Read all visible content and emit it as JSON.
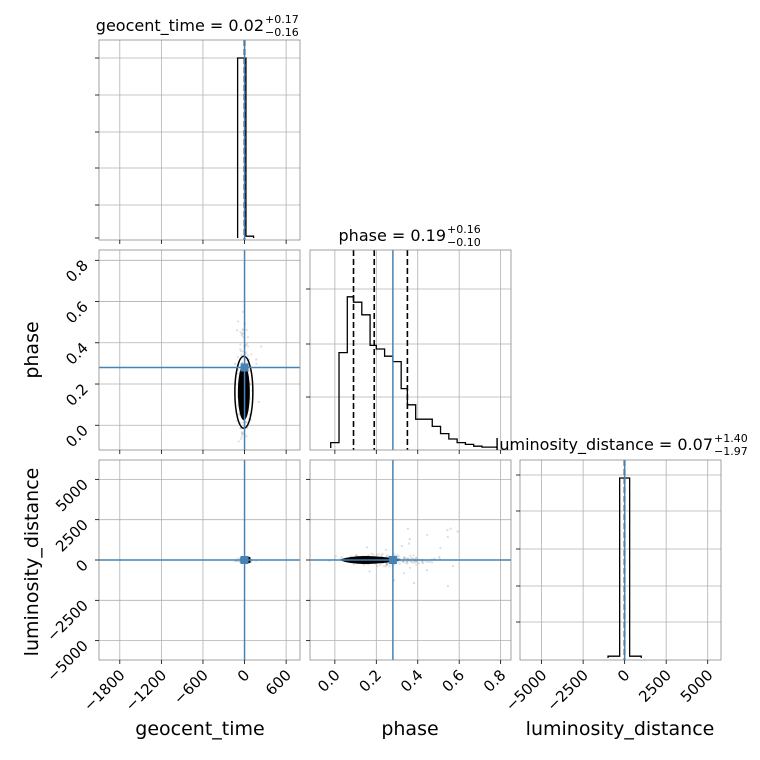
{
  "chart_data": [
    {
      "type": "histogram",
      "panel": "geocent_time",
      "title": {
        "base": "geocent_time = 0.02",
        "sup": "+0.17",
        "sub": "−0.16"
      },
      "xlim": [
        -2100,
        800
      ],
      "x_ticks": [
        -1800,
        -1200,
        -600,
        0,
        600
      ],
      "x_tick_labels": [],
      "bins": [
        {
          "x0": -100,
          "x1": 20,
          "height": 1.0
        },
        {
          "x0": 20,
          "x1": 130,
          "height": 0.01
        }
      ],
      "quantile_lines": [
        -0.14,
        0.02,
        0.19
      ],
      "truth": 0
    },
    {
      "type": "scatter",
      "panel": "phase vs geocent_time",
      "xlim": [
        -2100,
        800
      ],
      "ylim": [
        -0.12,
        0.85
      ],
      "x_ticks": [
        -1800,
        -1200,
        -600,
        0,
        600
      ],
      "y_ticks": [
        0.0,
        0.2,
        0.4,
        0.6,
        0.8
      ],
      "y_tick_labels": [
        "0.0",
        "0.2",
        "0.4",
        "0.6",
        "0.8"
      ],
      "ylabel": "phase",
      "truth": {
        "x": 0,
        "y": 0.28
      },
      "core_contour": {
        "x_center": -10,
        "y_range": [
          0.06,
          0.32
        ]
      }
    },
    {
      "type": "histogram",
      "panel": "phase",
      "title": {
        "base": "phase = 0.19",
        "sup": "+0.16",
        "sub": "−0.10"
      },
      "xlim": [
        -0.12,
        0.85
      ],
      "x_ticks": [
        0.0,
        0.2,
        0.4,
        0.6,
        0.8
      ],
      "x_tick_labels": [],
      "bin_edges": [
        -0.02,
        0.02,
        0.06,
        0.09,
        0.13,
        0.17,
        0.2,
        0.24,
        0.28,
        0.32,
        0.35,
        0.39,
        0.43,
        0.47,
        0.51,
        0.55,
        0.59,
        0.63,
        0.67,
        0.71,
        0.78
      ],
      "counts": [
        0.03,
        0.53,
        0.84,
        0.81,
        0.74,
        0.57,
        0.55,
        0.51,
        0.48,
        0.33,
        0.24,
        0.16,
        0.16,
        0.12,
        0.08,
        0.05,
        0.03,
        0.02,
        0.01,
        0.005
      ],
      "quantile_lines": [
        0.09,
        0.19,
        0.35
      ],
      "truth": 0.28
    },
    {
      "type": "scatter",
      "panel": "luminosity_distance vs geocent_time",
      "xlim": [
        -2100,
        800
      ],
      "ylim": [
        -6200,
        6200
      ],
      "x_ticks": [
        -1800,
        -1200,
        -600,
        0,
        600
      ],
      "x_tick_labels": [
        "−1800",
        "−1200",
        "−600",
        "0",
        "600"
      ],
      "y_ticks": [
        -5000,
        -2500,
        0,
        2500,
        5000
      ],
      "y_tick_labels": [
        "−5000",
        "−2500",
        "0",
        "2500",
        "5000"
      ],
      "xlabel": "geocent_time",
      "ylabel": "luminosity_distance",
      "truth": {
        "x": 0,
        "y": 0
      }
    },
    {
      "type": "scatter",
      "panel": "luminosity_distance vs phase",
      "xlim": [
        -0.12,
        0.85
      ],
      "ylim": [
        -6200,
        6200
      ],
      "x_ticks": [
        0.0,
        0.2,
        0.4,
        0.6,
        0.8
      ],
      "x_tick_labels": [
        "0.0",
        "0.2",
        "0.4",
        "0.6",
        "0.8"
      ],
      "y_ticks": [
        -5000,
        -2500,
        0,
        2500,
        5000
      ],
      "xlabel": "phase",
      "truth": {
        "x": 0.28,
        "y": 0
      }
    },
    {
      "type": "histogram",
      "panel": "luminosity_distance",
      "title": {
        "base": "luminosity_distance = 0.07",
        "sup": "+1.40",
        "sub": "−1.97"
      },
      "xlim": [
        -6300,
        5800
      ],
      "x_ticks": [
        -5000,
        -2500,
        0,
        2500,
        5000
      ],
      "x_tick_labels": [
        "−5000",
        "−2500",
        "0",
        "2500",
        "5000"
      ],
      "xlabel": "luminosity_distance",
      "bins": [
        {
          "x0": -1000,
          "x1": -300,
          "height": 0.01
        },
        {
          "x0": -300,
          "x1": 300,
          "height": 1.0
        },
        {
          "x0": 300,
          "x1": 1000,
          "height": 0.01
        }
      ],
      "quantile_lines": [
        -1.9,
        0.07,
        1.47
      ],
      "truth": 0
    }
  ]
}
